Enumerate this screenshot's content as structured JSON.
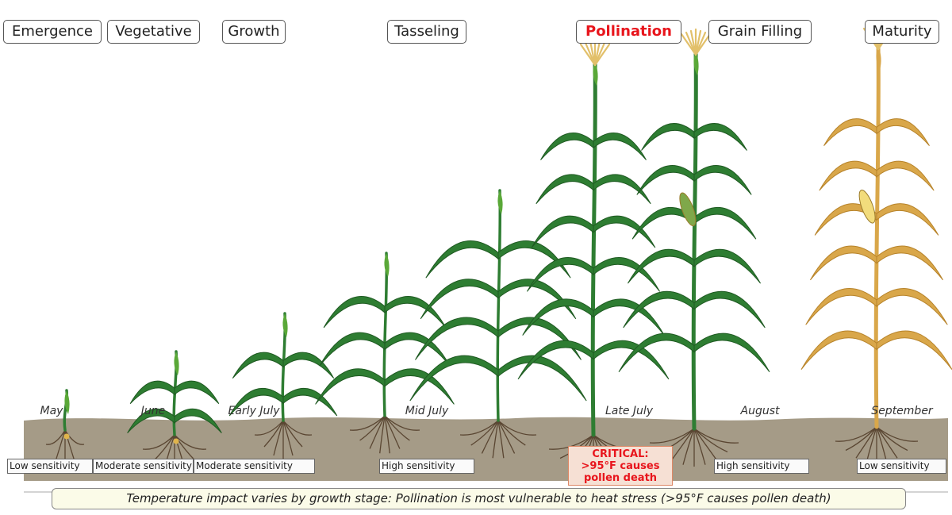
{
  "stages": [
    {
      "label": "Emergence",
      "critical": false
    },
    {
      "label": "Vegetative",
      "critical": false
    },
    {
      "label": "Growth",
      "critical": false
    },
    {
      "label": "Tasseling",
      "critical": false
    },
    {
      "label": "Pollination",
      "critical": true
    },
    {
      "label": "Grain Filling",
      "critical": false
    },
    {
      "label": "Maturity",
      "critical": false
    }
  ],
  "months": [
    "May",
    "June",
    "Early July",
    "Mid July",
    "Late July",
    "August",
    "September"
  ],
  "sensitivity": [
    "Low sensitivity",
    "Moderate sensitivity",
    "Moderate sensitivity",
    "High sensitivity",
    "CRITICAL: >95°F causes pollen death",
    "High sensitivity",
    "Low sensitivity"
  ],
  "sensitivity_critical_lines": [
    "CRITICAL:",
    ">95°F causes",
    "pollen death"
  ],
  "caption": "Temperature impact varies by growth stage: Pollination is most vulnerable to heat stress (>95°F causes pollen death)",
  "colors": {
    "plant_green": "#2e7d32",
    "plant_green_light": "#5aa838",
    "plant_mature": "#d9a74a",
    "tassel": "#e2c06a",
    "soil": "#a59b87",
    "root": "#5a4632",
    "critical": "#e8151c"
  }
}
